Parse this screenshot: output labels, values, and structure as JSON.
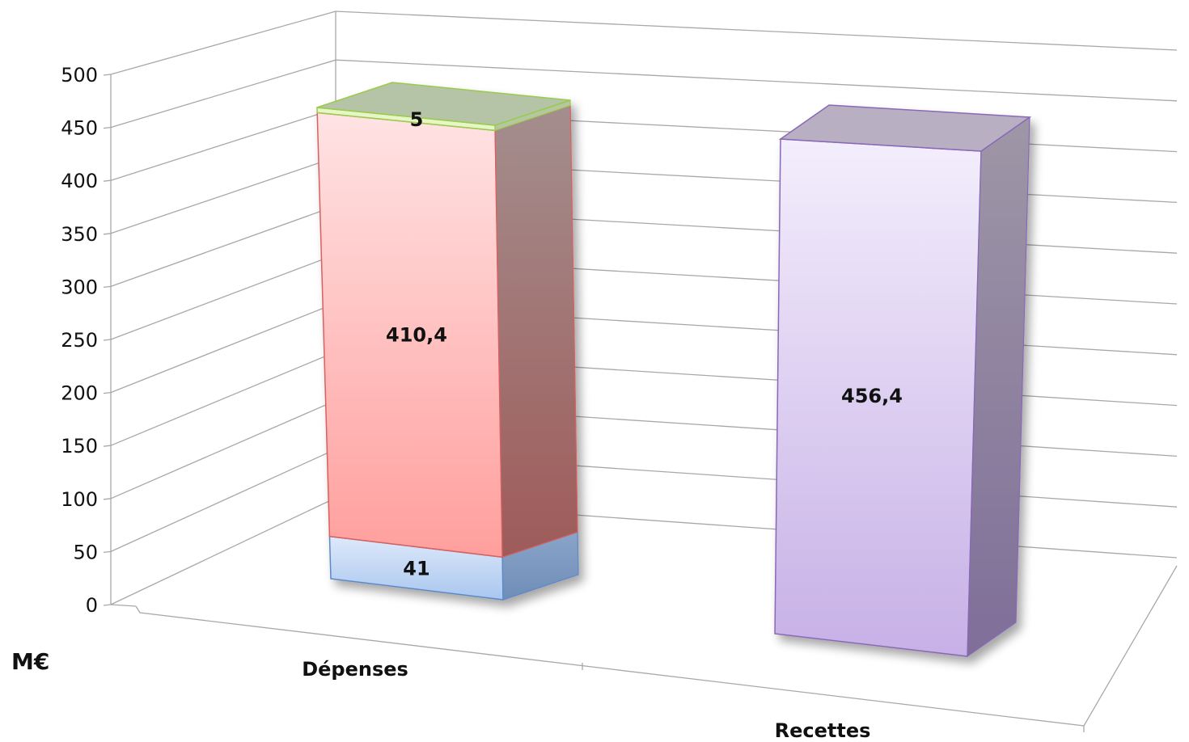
{
  "chart_data": {
    "type": "bar",
    "stacked": true,
    "three_d": true,
    "title": "",
    "xlabel": "",
    "ylabel": "M€",
    "ylim": [
      0,
      500
    ],
    "y_ticks": [
      "0",
      "50",
      "100",
      "150",
      "200",
      "250",
      "300",
      "350",
      "400",
      "450",
      "500"
    ],
    "grid": true,
    "legend": "none",
    "categories": [
      "Dépenses",
      "Recettes"
    ],
    "series": [
      {
        "values": [
          41,
          0
        ],
        "labels": [
          "41",
          ""
        ],
        "color": "#a9c6ee"
      },
      {
        "values": [
          410.4,
          0
        ],
        "labels": [
          "410,4",
          ""
        ],
        "color": "#ffb7b7"
      },
      {
        "values": [
          5,
          0
        ],
        "labels": [
          "5",
          ""
        ],
        "color": "#c7e89a"
      },
      {
        "values": [
          0,
          456.4
        ],
        "labels": [
          "",
          "456,4"
        ],
        "color": "#dccdf0"
      }
    ]
  }
}
